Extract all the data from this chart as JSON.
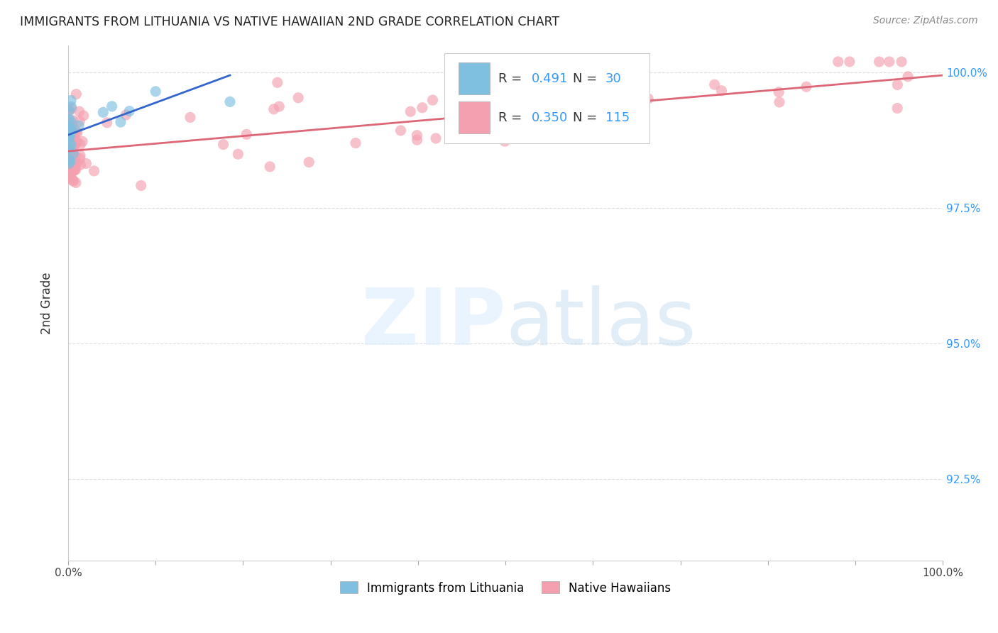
{
  "title": "IMMIGRANTS FROM LITHUANIA VS NATIVE HAWAIIAN 2ND GRADE CORRELATION CHART",
  "source": "Source: ZipAtlas.com",
  "ylabel": "2nd Grade",
  "xlim": [
    0.0,
    1.0
  ],
  "ylim": [
    0.91,
    1.005
  ],
  "ytick_positions": [
    0.925,
    0.95,
    0.975,
    1.0
  ],
  "ytick_labels": [
    "92.5%",
    "95.0%",
    "97.5%",
    "100.0%"
  ],
  "xtick_labels": [
    "0.0%",
    "",
    "",
    "",
    "",
    "",
    "",
    "",
    "",
    "",
    "100.0%"
  ],
  "grid_color": "#dddddd",
  "background_color": "#ffffff",
  "color_blue": "#7fbfdf",
  "color_pink": "#f4a0b0",
  "line_blue": "#3366cc",
  "line_pink": "#dd6677",
  "blue_line_x": [
    0.0,
    0.185
  ],
  "blue_line_y": [
    0.9885,
    0.9995
  ],
  "pink_line_x": [
    0.0,
    1.0
  ],
  "pink_line_y": [
    0.9855,
    0.9995
  ],
  "blue_scatter_seed": 10,
  "pink_scatter_seed": 20
}
